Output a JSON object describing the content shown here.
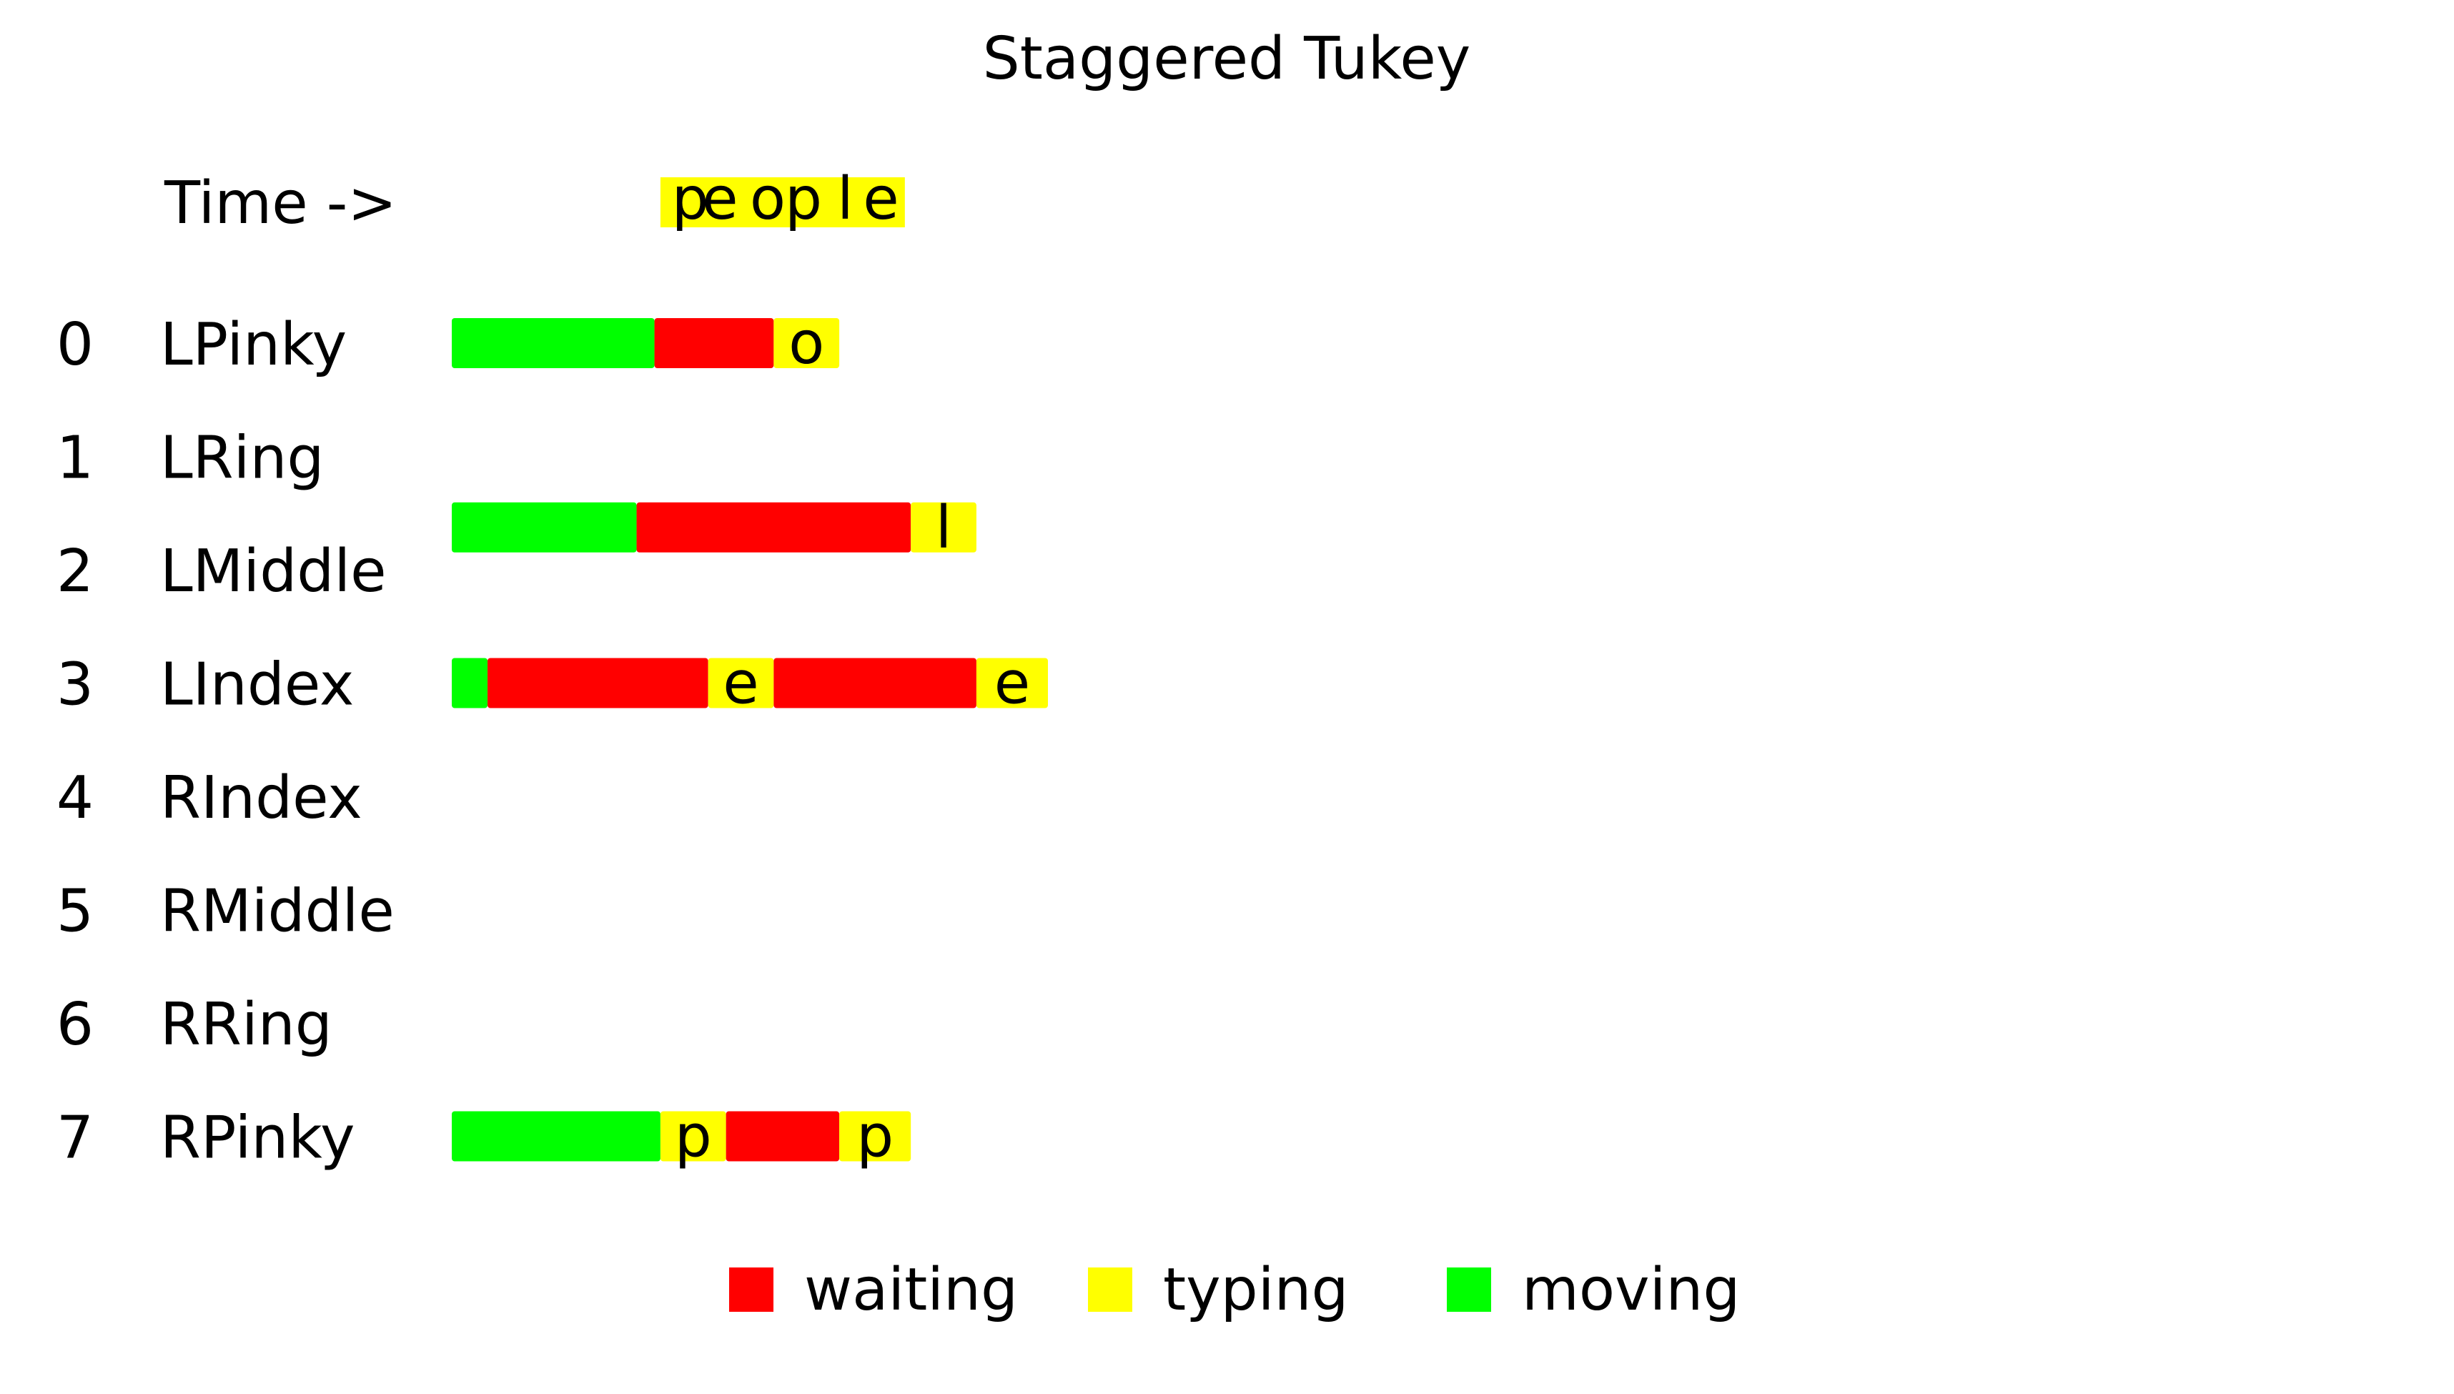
{
  "title": "Staggered Tukey",
  "time_label": "Time ->",
  "colors": {
    "waiting": "#ff0000",
    "typing": "#ffff00",
    "moving": "#00ff00"
  },
  "timeline": {
    "t_start": 0,
    "t_end": 100,
    "header_segment": {
      "start": 35,
      "end": 76
    },
    "header_letters": [
      {
        "t": 40,
        "char": "p"
      },
      {
        "t": 45,
        "char": "e"
      },
      {
        "t": 53,
        "char": "o"
      },
      {
        "t": 59,
        "char": "p"
      },
      {
        "t": 66,
        "char": "l"
      },
      {
        "t": 72,
        "char": "e"
      }
    ]
  },
  "fingers": [
    {
      "index": "0",
      "name": "LPinky",
      "segments": [
        {
          "state": "moving",
          "start": 0,
          "end": 34
        },
        {
          "state": "waiting",
          "start": 34,
          "end": 54
        },
        {
          "state": "typing",
          "start": 54,
          "end": 65,
          "char": "o"
        }
      ]
    },
    {
      "index": "1",
      "name": "LRing",
      "segments": [
        {
          "state": "moving",
          "start": 0,
          "end": 31
        },
        {
          "state": "waiting",
          "start": 31,
          "end": 77
        },
        {
          "state": "typing",
          "start": 77,
          "end": 88,
          "char": "l"
        }
      ],
      "bar_offset": "between-next"
    },
    {
      "index": "2",
      "name": "LMiddle",
      "segments": []
    },
    {
      "index": "3",
      "name": "LIndex",
      "segments": [
        {
          "state": "moving",
          "start": 0,
          "end": 6
        },
        {
          "state": "waiting",
          "start": 6,
          "end": 43
        },
        {
          "state": "typing",
          "start": 43,
          "end": 54,
          "char": "e"
        },
        {
          "state": "waiting",
          "start": 54,
          "end": 88
        },
        {
          "state": "typing",
          "start": 88,
          "end": 100,
          "char": "e"
        }
      ]
    },
    {
      "index": "4",
      "name": "RIndex",
      "segments": []
    },
    {
      "index": "5",
      "name": "RMiddle",
      "segments": []
    },
    {
      "index": "6",
      "name": "RRing",
      "segments": []
    },
    {
      "index": "7",
      "name": "RPinky",
      "segments": [
        {
          "state": "moving",
          "start": 0,
          "end": 35
        },
        {
          "state": "typing",
          "start": 35,
          "end": 46,
          "char": "p"
        },
        {
          "state": "waiting",
          "start": 46,
          "end": 65
        },
        {
          "state": "typing",
          "start": 65,
          "end": 77,
          "char": "p"
        }
      ]
    }
  ],
  "legend": [
    {
      "state": "waiting",
      "label": "waiting"
    },
    {
      "state": "typing",
      "label": "typing"
    },
    {
      "state": "moving",
      "label": "moving"
    }
  ]
}
